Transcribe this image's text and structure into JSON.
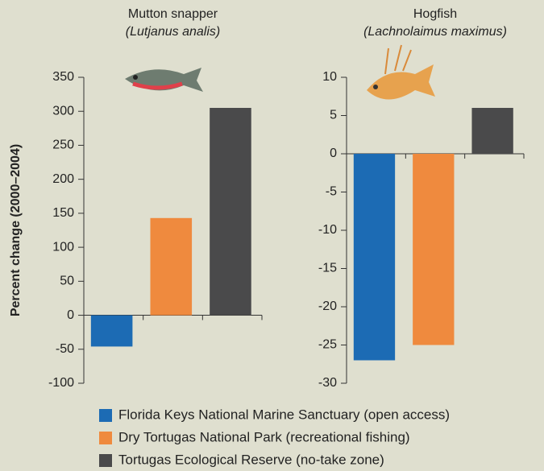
{
  "chart_data": [
    {
      "type": "bar",
      "title": "Mutton snapper",
      "subtitle": "(Lutjanus analis)",
      "ylabel": "Percent change (2000–2004)",
      "values": [
        -46,
        143,
        305
      ],
      "ylim": [
        -100,
        350
      ],
      "yticks": [
        -100,
        -50,
        0,
        50,
        100,
        150,
        200,
        250,
        300,
        350
      ]
    },
    {
      "type": "bar",
      "title": "Hogfish",
      "subtitle": "(Lachnolaimus maximus)",
      "values": [
        -27,
        -25,
        6
      ],
      "ylim": [
        -30,
        10
      ],
      "yticks": [
        -30,
        -25,
        -20,
        -15,
        -10,
        -5,
        0,
        5,
        10
      ]
    }
  ],
  "legend": {
    "entries": [
      {
        "label": "Florida Keys National Marine Sanctuary (open access)",
        "color": "#1c6bb4"
      },
      {
        "label": "Dry Tortugas National Park (recreational fishing)",
        "color": "#ef8a3e"
      },
      {
        "label": "Tortugas Ecological Reserve (no-take zone)",
        "color": "#4a4a4b"
      }
    ]
  }
}
